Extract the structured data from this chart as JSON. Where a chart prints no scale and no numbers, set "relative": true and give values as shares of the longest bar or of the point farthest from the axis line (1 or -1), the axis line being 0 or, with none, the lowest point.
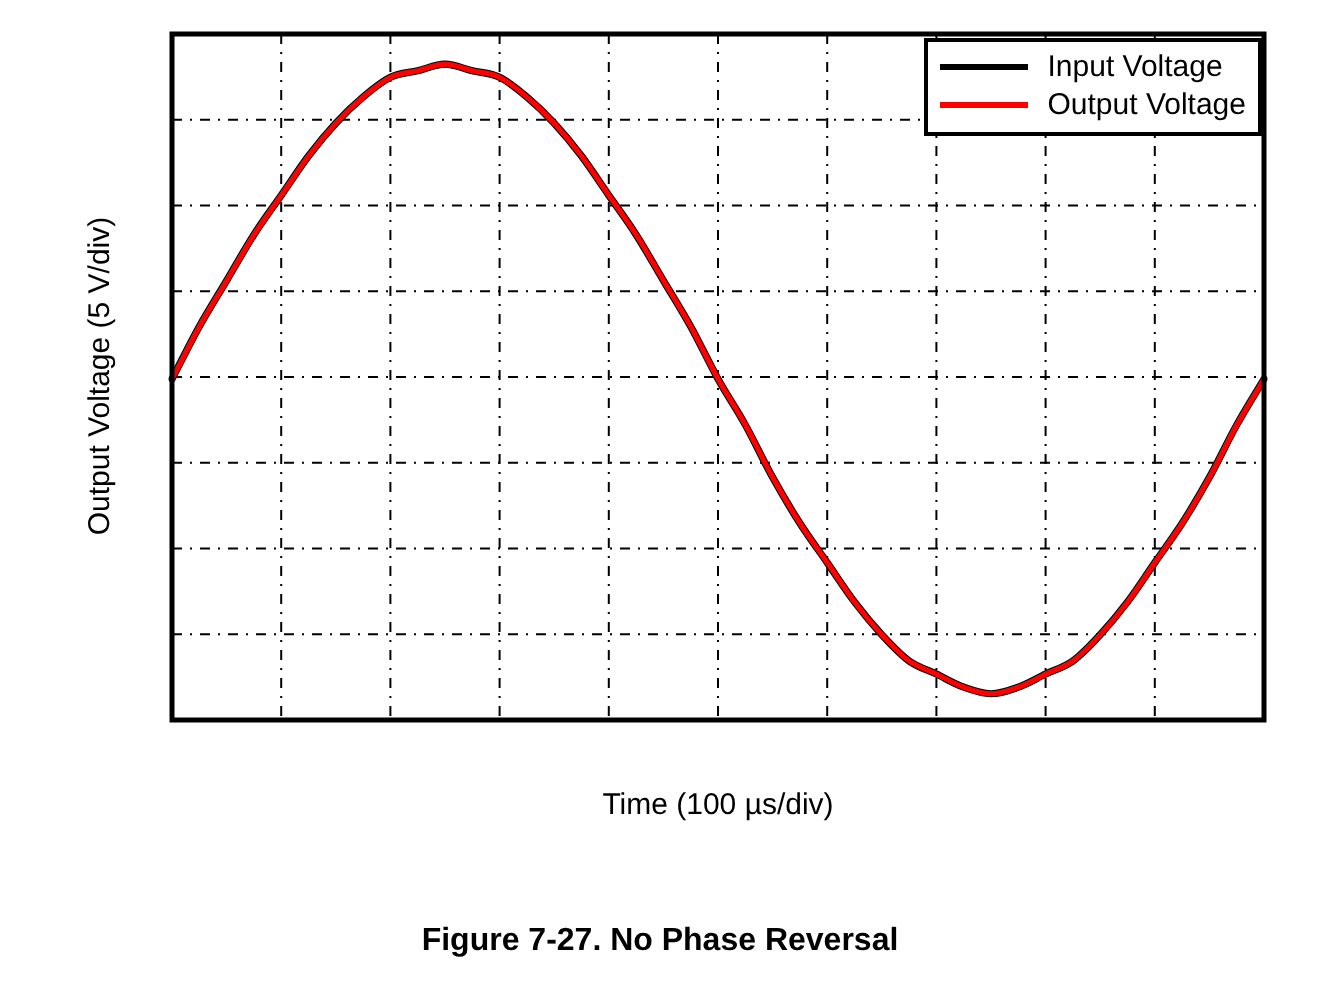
{
  "chart_data": {
    "type": "line",
    "relative": true,
    "xlabel": "Time (100 µs/div)",
    "ylabel": "Output Voltage (5 V/div)",
    "annotations": [
      "Figure 7-27. No Phase Reversal"
    ],
    "grid": true,
    "legend": "top right",
    "tick_labels": false,
    "marker": "none",
    "line_style": "solid",
    "categories": [
      null,
      null,
      null,
      null,
      null,
      null,
      null,
      null,
      null,
      null,
      null,
      null,
      null,
      null,
      null,
      null,
      null,
      null,
      null,
      null,
      null,
      null,
      null,
      null,
      null,
      null,
      null,
      null,
      null,
      null,
      null,
      null,
      null,
      null,
      null,
      null,
      null,
      null,
      null,
      null,
      null
    ],
    "series": [
      {
        "name": "Input Voltage",
        "color": "#000000",
        "values": [
          0.52,
          0.6,
          0.67,
          0.74,
          0.8,
          0.86,
          0.91,
          0.95,
          0.98,
          0.99,
          1,
          0.99,
          0.98,
          0.95,
          0.91,
          0.86,
          0.8,
          0.74,
          0.67,
          0.6,
          0.52,
          0.45,
          0.37,
          0.3,
          0.24,
          0.18,
          0.13,
          0.09,
          0.07,
          0.05,
          0.04,
          0.05,
          0.07,
          0.09,
          0.13,
          0.18,
          0.24,
          0.3,
          0.37,
          0.45,
          0.52
        ]
      },
      {
        "name": "Output Voltage",
        "color": "#ff0000",
        "values": [
          0.52,
          0.6,
          0.67,
          0.74,
          0.8,
          0.86,
          0.91,
          0.95,
          0.98,
          0.99,
          1,
          0.99,
          0.98,
          0.95,
          0.91,
          0.86,
          0.8,
          0.74,
          0.67,
          0.6,
          0.52,
          0.45,
          0.37,
          0.3,
          0.24,
          0.18,
          0.13,
          0.09,
          0.07,
          0.05,
          0.04,
          0.05,
          0.07,
          0.09,
          0.13,
          0.18,
          0.24,
          0.3,
          0.37,
          0.45,
          0.52
        ]
      }
    ]
  }
}
